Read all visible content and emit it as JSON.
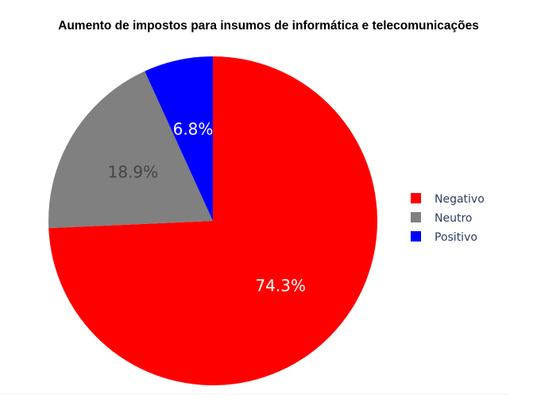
{
  "chart_data": {
    "type": "pie",
    "title": "Aumento de impostos para insumos de informática e telecomunicações",
    "start_angle_deg": 90,
    "direction": "clockwise",
    "slices": [
      {
        "label": "Negativo",
        "value": 74.3,
        "display": "74.3%",
        "color": "#ff0000",
        "text_color": "#ffffff"
      },
      {
        "label": "Neutro",
        "value": 18.9,
        "display": "18.9%",
        "color": "#808080",
        "text_color": "#444444"
      },
      {
        "label": "Positivo",
        "value": 6.8,
        "display": "6.8%",
        "color": "#0000ff",
        "text_color": "#ffffff"
      }
    ],
    "legend": {
      "position": "right",
      "entries": [
        "Negativo",
        "Neutro",
        "Positivo"
      ]
    }
  }
}
